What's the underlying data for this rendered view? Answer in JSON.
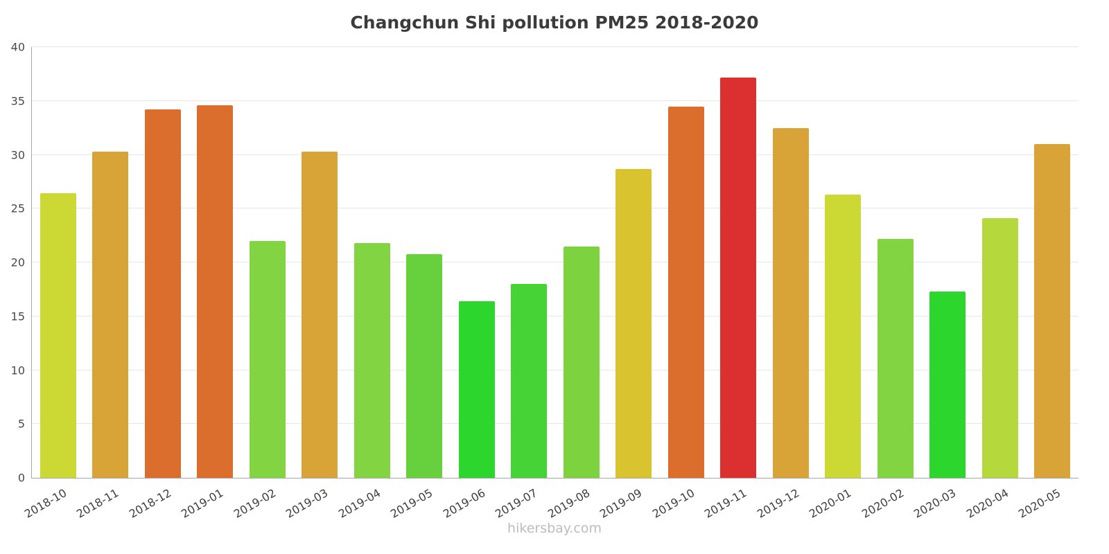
{
  "title": "Changchun Shi pollution PM25 2018-2020",
  "footer": "hikersbay.com",
  "chart_data": {
    "type": "bar",
    "title": "Changchun Shi pollution PM25 2018-2020",
    "xlabel": "",
    "ylabel": "",
    "ylim": [
      0,
      40
    ],
    "yticks": [
      0,
      5,
      10,
      15,
      20,
      25,
      30,
      35,
      40
    ],
    "grid": true,
    "legend": "none",
    "categories": [
      "2018-10",
      "2018-11",
      "2018-12",
      "2019-01",
      "2019-02",
      "2019-03",
      "2019-04",
      "2019-05",
      "2019-06",
      "2019-07",
      "2019-08",
      "2019-09",
      "2019-10",
      "2019-11",
      "2019-12",
      "2020-01",
      "2020-02",
      "2020-03",
      "2020-04",
      "2020-05"
    ],
    "values": [
      26.4,
      30.3,
      34.2,
      34.6,
      22.0,
      30.3,
      21.8,
      20.8,
      16.4,
      18.0,
      21.5,
      28.7,
      34.5,
      37.2,
      32.5,
      26.3,
      22.2,
      17.3,
      24.1,
      31.0
    ],
    "bar_colors": [
      "#ccd935",
      "#d8a437",
      "#dc6e2d",
      "#dc6e2d",
      "#83d442",
      "#d8a437",
      "#83d442",
      "#66d13c",
      "#2dd62d",
      "#45d336",
      "#7dd33f",
      "#d9c32f",
      "#dc6e2d",
      "#dc2f2f",
      "#d8a437",
      "#ccd935",
      "#83d442",
      "#2dd62d",
      "#b5d83c",
      "#d8a437"
    ],
    "colors": {
      "gridline": "#e7e7e7",
      "axis": "#a6a6a6",
      "title_text": "#3b3b3b",
      "tick_text": "#4a4a4a",
      "footer_text": "#bcbcbc"
    }
  }
}
